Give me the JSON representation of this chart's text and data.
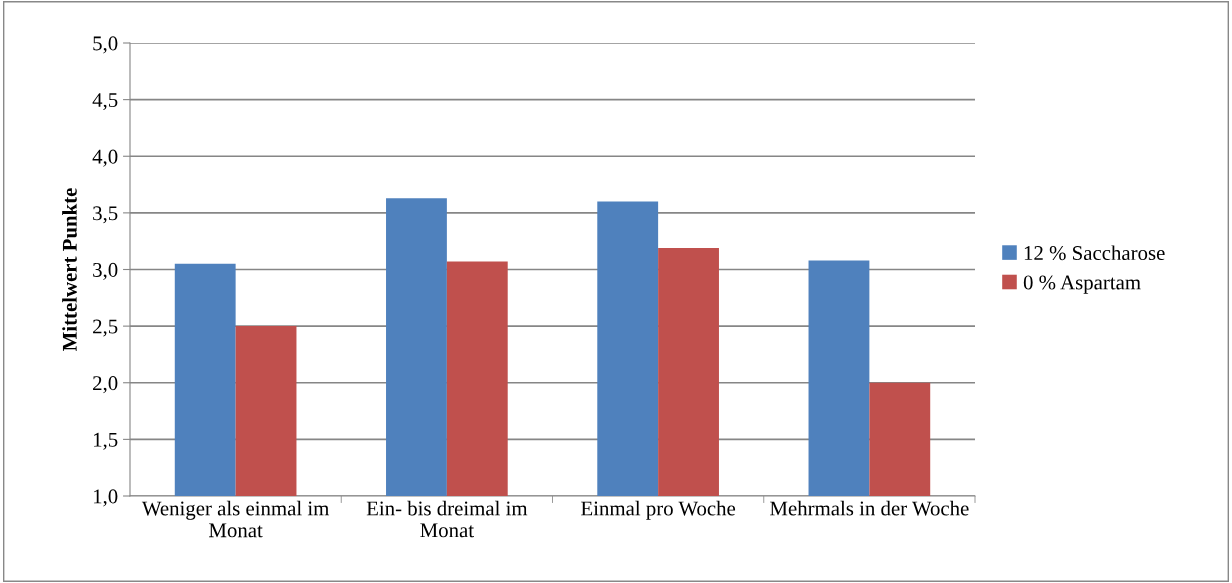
{
  "chart_data": {
    "type": "bar",
    "ylabel": "Mittelwert Punkte",
    "categories": [
      "Weniger als einmal im Monat",
      "Ein- bis dreimal im Monat",
      "Einmal pro Woche",
      "Mehrmals in der Woche"
    ],
    "series": [
      {
        "name": "12 % Saccharose",
        "color": "#4f81bd",
        "values": [
          3.05,
          3.63,
          3.6,
          3.08
        ]
      },
      {
        "name": "0 % Aspartam",
        "color": "#c0504d",
        "values": [
          2.5,
          3.07,
          3.19,
          2.0
        ]
      }
    ],
    "ylim": [
      1.0,
      5.0
    ],
    "yticks": [
      {
        "value": 1.0,
        "label": "1,0"
      },
      {
        "value": 1.5,
        "label": "1,5"
      },
      {
        "value": 2.0,
        "label": "2,0"
      },
      {
        "value": 2.5,
        "label": "2,5"
      },
      {
        "value": 3.0,
        "label": "3,0"
      },
      {
        "value": 3.5,
        "label": "3,5"
      },
      {
        "value": 4.0,
        "label": "4,0"
      },
      {
        "value": 4.5,
        "label": "4,5"
      },
      {
        "value": 5.0,
        "label": "5,0"
      }
    ],
    "grid": "y",
    "legend": "right"
  }
}
